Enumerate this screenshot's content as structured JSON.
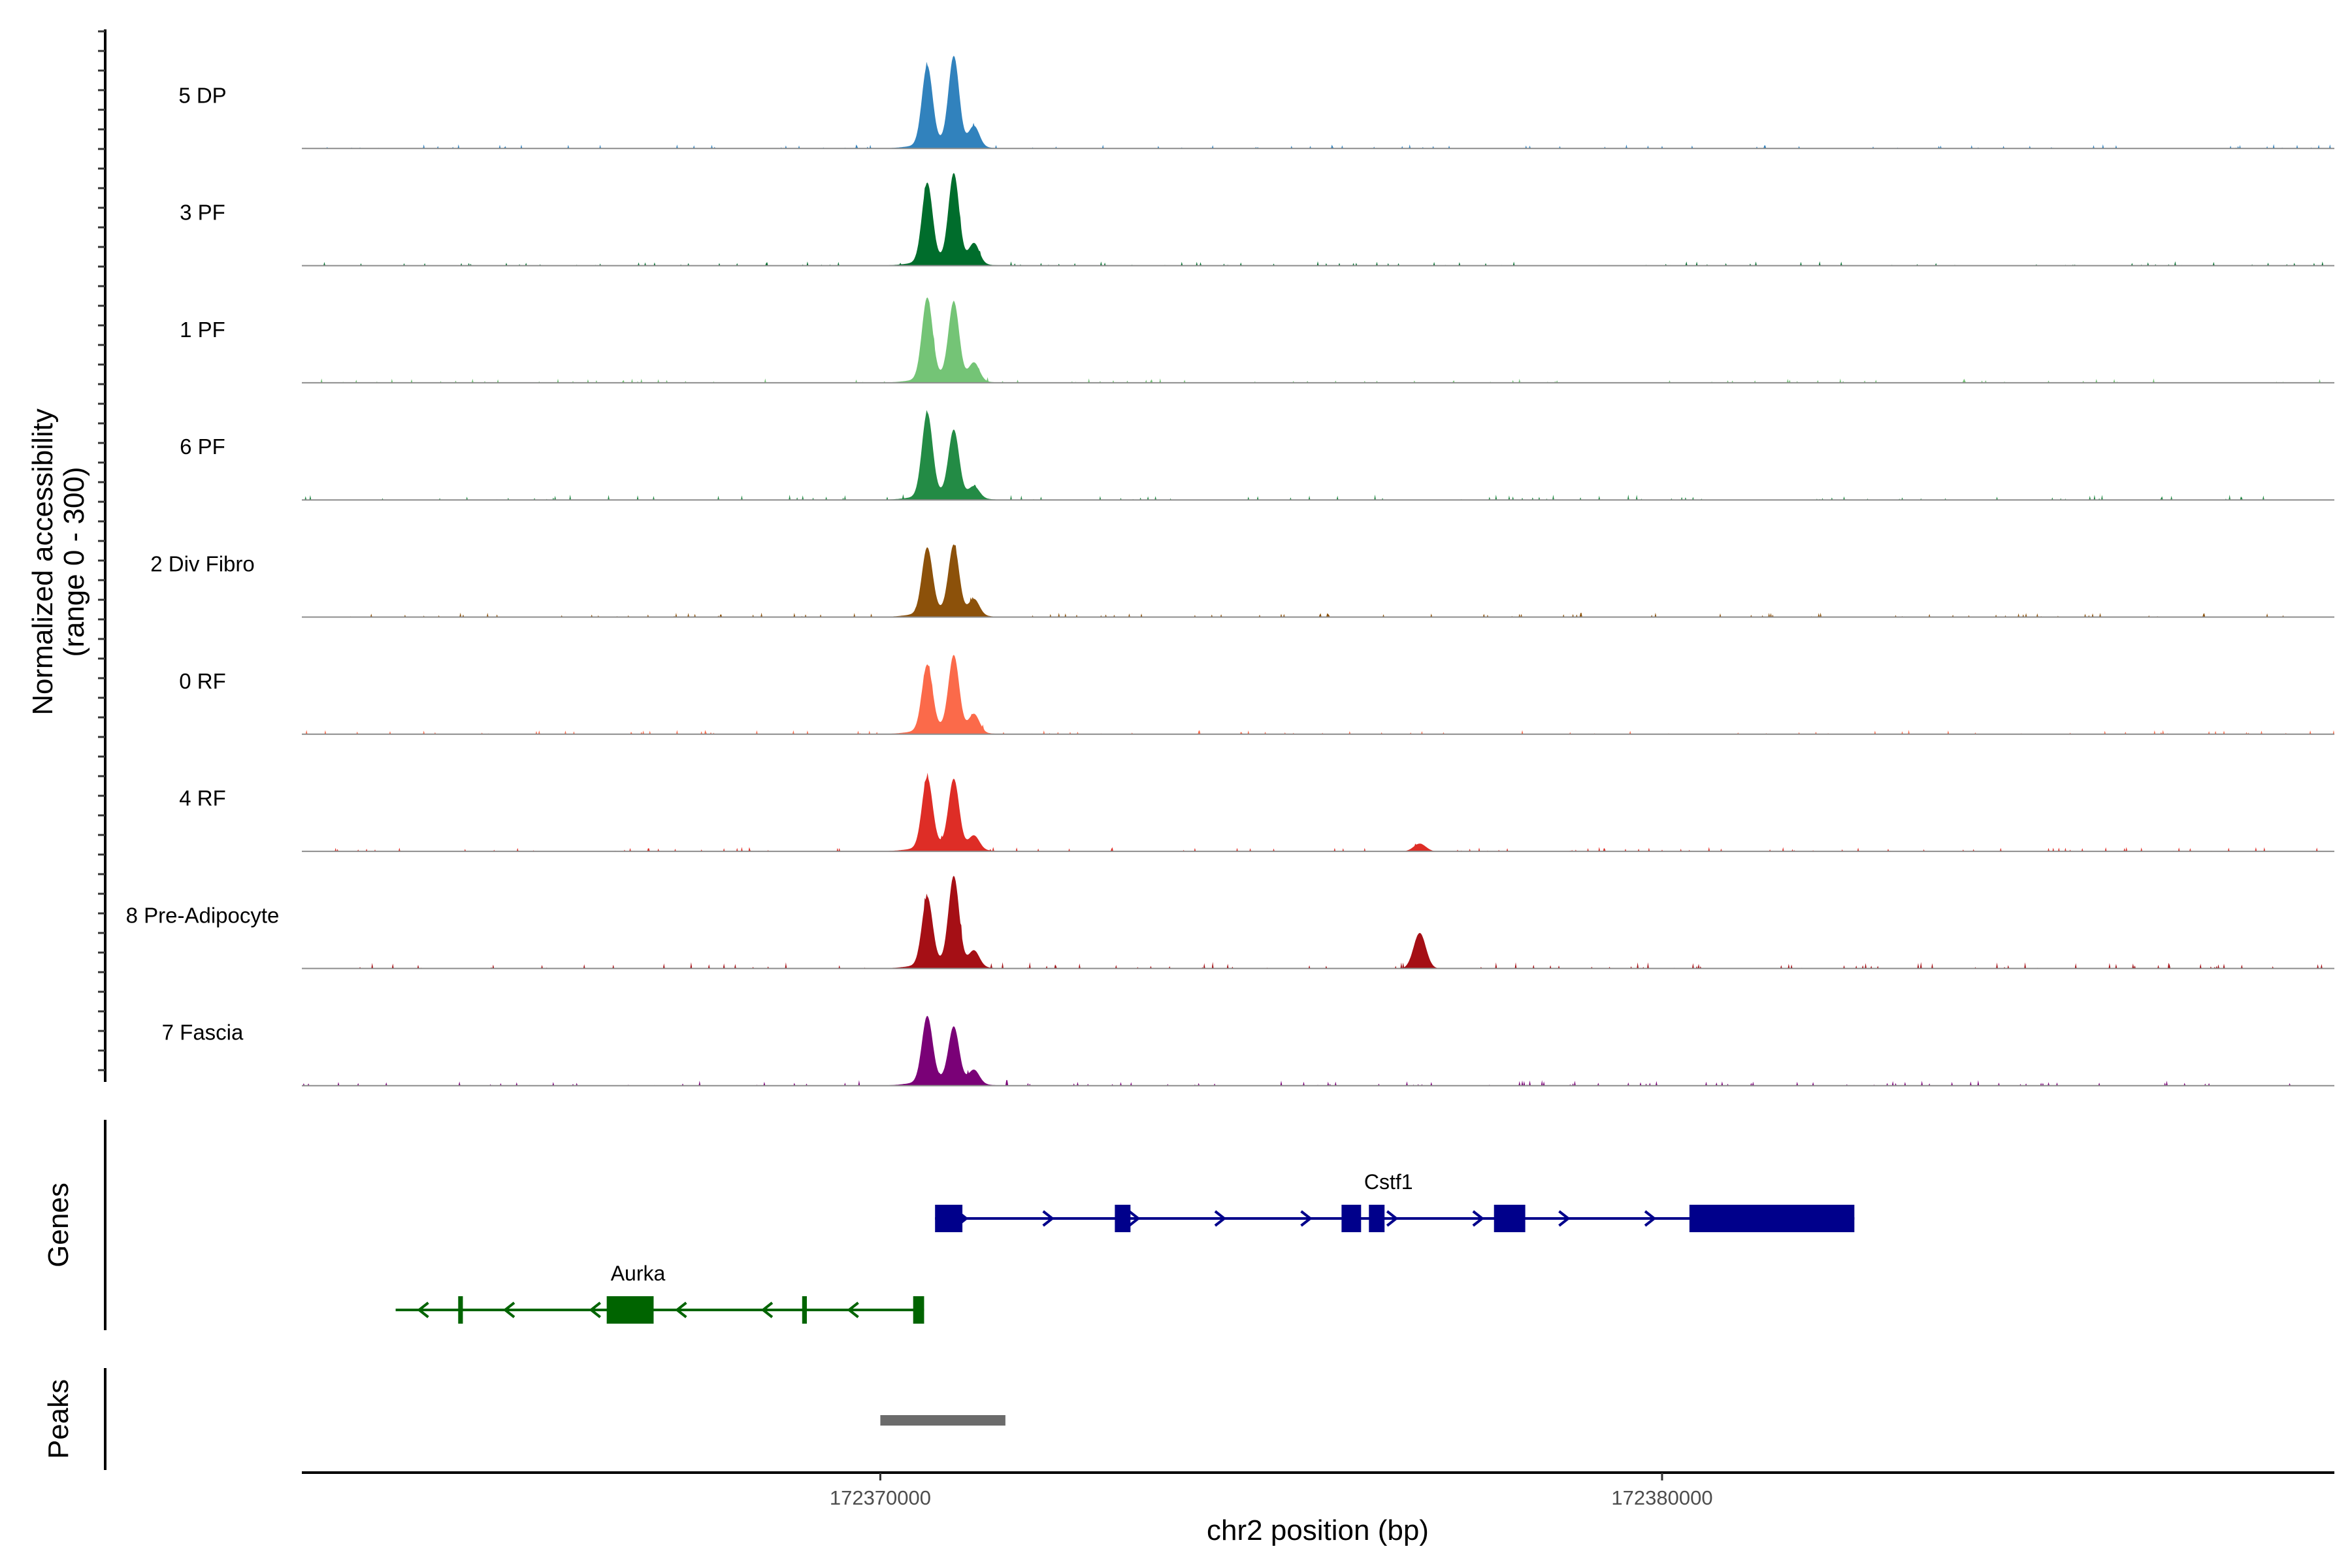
{
  "chart_data": {
    "type": "area",
    "title": "",
    "ylabel_line1": "Normalized accessibility",
    "ylabel_line2": "(range 0 - 300)",
    "xlabel": "chr2 position (bp)",
    "xlim": [
      172362600,
      172388600
    ],
    "ylim": [
      0,
      300
    ],
    "xticks": [
      172370000,
      172380000
    ],
    "xtick_labels": [
      "172370000",
      "172380000"
    ],
    "series": [
      {
        "name": "5 DP",
        "color": "#3182BD",
        "peaks": [
          [
            172370600,
            0.7
          ],
          [
            172370940,
            0.78
          ],
          [
            172371200,
            0.18
          ]
        ],
        "side_peaks": [],
        "noise": 0.04
      },
      {
        "name": "3 PF",
        "color": "#006D2C",
        "peaks": [
          [
            172370600,
            0.7
          ],
          [
            172370940,
            0.78
          ],
          [
            172371200,
            0.18
          ]
        ],
        "side_peaks": [],
        "noise": 0.04
      },
      {
        "name": "1 PF",
        "color": "#74C476",
        "peaks": [
          [
            172370600,
            0.72
          ],
          [
            172370940,
            0.68
          ],
          [
            172371200,
            0.16
          ]
        ],
        "side_peaks": [],
        "noise": 0.04
      },
      {
        "name": "6 PF",
        "color": "#238B45",
        "peaks": [
          [
            172370600,
            0.74
          ],
          [
            172370940,
            0.58
          ],
          [
            172371200,
            0.1
          ]
        ],
        "side_peaks": [],
        "noise": 0.05
      },
      {
        "name": "2 Div Fibro",
        "color": "#8C510A",
        "peaks": [
          [
            172370600,
            0.58
          ],
          [
            172370940,
            0.6
          ],
          [
            172371200,
            0.14
          ]
        ],
        "side_peaks": [],
        "noise": 0.04
      },
      {
        "name": "0 RF",
        "color": "#FB6A4A",
        "peaks": [
          [
            172370600,
            0.58
          ],
          [
            172370940,
            0.66
          ],
          [
            172371200,
            0.16
          ]
        ],
        "side_peaks": [],
        "noise": 0.04
      },
      {
        "name": "4 RF",
        "color": "#DE2D26",
        "peaks": [
          [
            172370600,
            0.62
          ],
          [
            172370940,
            0.6
          ],
          [
            172371200,
            0.12
          ]
        ],
        "side_peaks": [
          [
            172376900,
            0.07
          ]
        ],
        "noise": 0.04
      },
      {
        "name": "8 Pre-Adipocyte",
        "color": "#A50F15",
        "peaks": [
          [
            172370600,
            0.6
          ],
          [
            172370940,
            0.78
          ],
          [
            172371200,
            0.14
          ]
        ],
        "side_peaks": [
          [
            172376900,
            0.32
          ]
        ],
        "noise": 0.06
      },
      {
        "name": "7 Fascia",
        "color": "#7A0177",
        "peaks": [
          [
            172370600,
            0.58
          ],
          [
            172370940,
            0.48
          ],
          [
            172371200,
            0.12
          ]
        ],
        "side_peaks": [],
        "noise": 0.05
      }
    ],
    "panel_labels": {
      "genes": "Genes",
      "peaks": "Peaks"
    },
    "genes": [
      {
        "name": "Cstf1",
        "strand": "+",
        "color": "#00008B",
        "start": 172370700,
        "end": 172382460,
        "label_pos": 172376500,
        "exons": [
          [
            172370700,
            172371050
          ],
          [
            172373000,
            172373200
          ],
          [
            172375900,
            172376150
          ],
          [
            172376250,
            172376450
          ],
          [
            172377850,
            172378250
          ],
          [
            172380350,
            172382460
          ]
        ]
      },
      {
        "name": "Aurka",
        "strand": "-",
        "color": "#006400",
        "start": 172363800,
        "end": 172370560,
        "label_pos": 172366900,
        "exons": [
          [
            172364600,
            172364660
          ],
          [
            172366500,
            172367100
          ],
          [
            172369000,
            172369060
          ],
          [
            172370420,
            172370560
          ]
        ]
      }
    ],
    "peak_regions": [
      [
        172370000,
        172371600
      ]
    ]
  }
}
